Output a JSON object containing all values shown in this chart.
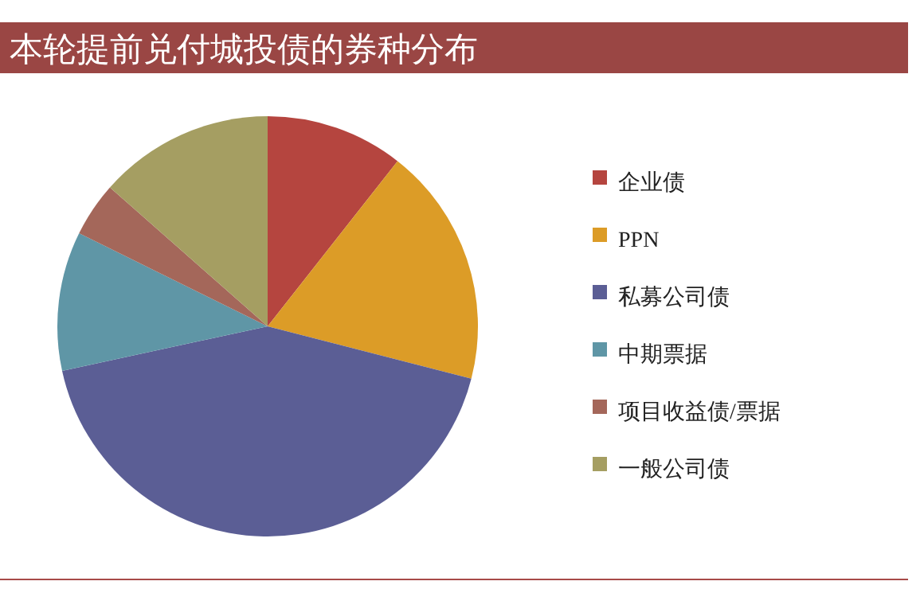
{
  "chart_data": {
    "type": "pie",
    "title": "本轮提前兑付城投债的券种分布",
    "categories": [
      "企业债",
      "PPN",
      "私募公司债",
      "中期票据",
      "项目收益债/票据",
      "一般公司债"
    ],
    "values": [
      10.6,
      18.4,
      42.6,
      10.7,
      4.2,
      13.5
    ],
    "colors": [
      "#b5453f",
      "#dc9c27",
      "#5b5e95",
      "#5f96a6",
      "#a4675a",
      "#a59e62"
    ],
    "legend": "right"
  }
}
